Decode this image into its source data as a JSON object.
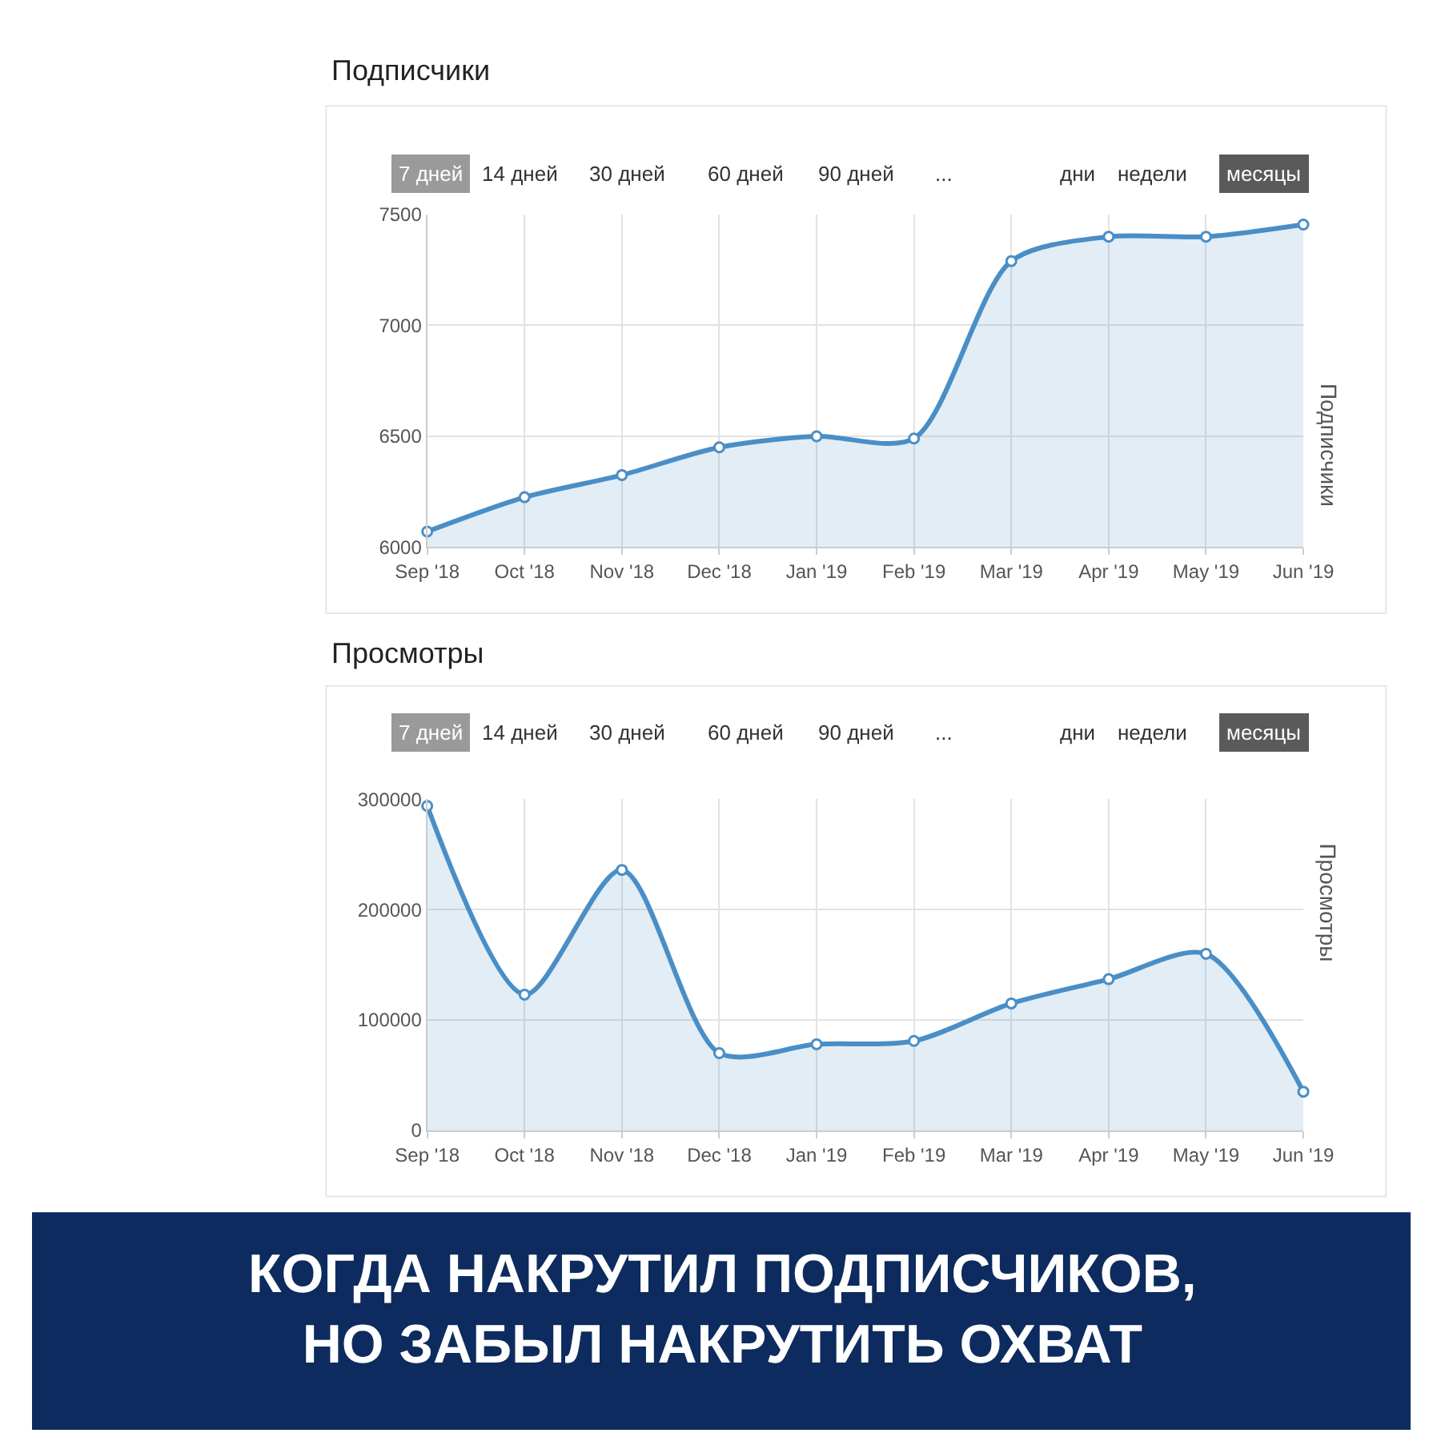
{
  "chart_data": [
    {
      "type": "area",
      "title": "Подписчики",
      "ylabel": "Подписчики",
      "categories": [
        "Sep '18",
        "Oct '18",
        "Nov '18",
        "Dec '18",
        "Jan '19",
        "Feb '19",
        "Mar '19",
        "Apr '19",
        "May '19",
        "Jun '19"
      ],
      "series": [
        {
          "color": "#4a8ec6",
          "values": [
            6070,
            6225,
            6325,
            6450,
            6500,
            6490,
            7290,
            7400,
            7400,
            7455
          ]
        }
      ],
      "ylim": [
        6000,
        7500
      ],
      "yticks": [
        6000,
        6500,
        7000,
        7500
      ],
      "grid": true,
      "marker": "circle",
      "line_style": "solid",
      "annotations": [
        "7 дней",
        "14 дней",
        "30 дней",
        "60 дней",
        "90 дней",
        "...",
        "дни",
        "недели",
        "месяцы"
      ]
    },
    {
      "type": "area",
      "title": "Просмотры",
      "ylabel": "Просмотры",
      "categories": [
        "Sep '18",
        "Oct '18",
        "Nov '18",
        "Dec '18",
        "Jan '19",
        "Feb '19",
        "Mar '19",
        "Apr '19",
        "May '19",
        "Jun '19"
      ],
      "series": [
        {
          "color": "#4a8ec6",
          "values": [
            294000,
            123000,
            236000,
            70000,
            78000,
            81000,
            115000,
            137000,
            160000,
            35000
          ]
        }
      ],
      "ylim": [
        0,
        300000
      ],
      "yticks": [
        0,
        100000,
        200000,
        300000
      ],
      "grid": true,
      "marker": "circle",
      "line_style": "solid",
      "annotations": [
        "7 дней",
        "14 дней",
        "30 дней",
        "60 дней",
        "90 дней",
        "...",
        "дни",
        "недели",
        "месяцы",
        "КОГДА НАКРУТИЛ ПОДПИСЧИКОВ,\nНО ЗАБЫЛ НАКРУТИТЬ ОХВАТ"
      ]
    }
  ]
}
